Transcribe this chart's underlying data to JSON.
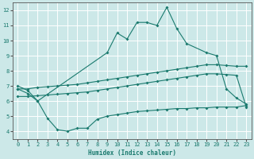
{
  "xlabel": "Humidex (Indice chaleur)",
  "background_color": "#cce8e8",
  "grid_color": "#ffffff",
  "line_color": "#1a7a6e",
  "xlim": [
    -0.5,
    23.5
  ],
  "ylim": [
    3.5,
    12.5
  ],
  "xticks": [
    0,
    1,
    2,
    3,
    4,
    5,
    6,
    7,
    8,
    9,
    10,
    11,
    12,
    13,
    14,
    15,
    16,
    17,
    18,
    19,
    20,
    21,
    22,
    23
  ],
  "yticks": [
    4,
    5,
    6,
    7,
    8,
    9,
    10,
    11,
    12
  ],
  "line_peak_x": [
    0,
    1,
    2,
    9,
    10,
    11,
    12,
    13,
    14,
    15,
    16,
    17,
    19,
    20,
    21,
    22,
    23
  ],
  "line_peak_y": [
    7.0,
    6.7,
    6.0,
    9.2,
    10.5,
    10.1,
    11.2,
    11.2,
    11.0,
    12.2,
    10.8,
    9.8,
    9.2,
    9.0,
    6.8,
    6.2,
    5.8
  ],
  "line_upper_x": [
    0,
    1,
    2,
    3,
    4,
    5,
    6,
    7,
    8,
    9,
    10,
    11,
    12,
    13,
    14,
    15,
    16,
    17,
    18,
    19,
    20,
    21,
    22,
    23
  ],
  "line_upper_y": [
    6.8,
    6.8,
    6.9,
    6.95,
    7.0,
    7.05,
    7.1,
    7.2,
    7.3,
    7.4,
    7.5,
    7.6,
    7.7,
    7.8,
    7.9,
    8.0,
    8.1,
    8.2,
    8.3,
    8.4,
    8.4,
    8.35,
    8.3,
    8.3
  ],
  "line_lower_x": [
    0,
    1,
    2,
    3,
    4,
    5,
    6,
    7,
    8,
    9,
    10,
    11,
    12,
    13,
    14,
    15,
    16,
    17,
    18,
    19,
    20,
    21,
    22,
    23
  ],
  "line_lower_y": [
    6.3,
    6.3,
    6.35,
    6.4,
    6.45,
    6.5,
    6.55,
    6.6,
    6.7,
    6.8,
    6.9,
    7.0,
    7.1,
    7.2,
    7.3,
    7.4,
    7.5,
    7.6,
    7.7,
    7.8,
    7.8,
    7.75,
    7.7,
    5.6
  ],
  "line_min_x": [
    0,
    1,
    2,
    3,
    4,
    5,
    6,
    7,
    8,
    9,
    10,
    11,
    12,
    13,
    14,
    15,
    16,
    17,
    18,
    19,
    20,
    21,
    22,
    23
  ],
  "line_min_y": [
    6.8,
    6.5,
    6.0,
    4.85,
    4.1,
    4.0,
    4.2,
    4.2,
    4.8,
    5.0,
    5.1,
    5.2,
    5.3,
    5.35,
    5.4,
    5.45,
    5.5,
    5.5,
    5.55,
    5.55,
    5.6,
    5.6,
    5.6,
    5.7
  ]
}
